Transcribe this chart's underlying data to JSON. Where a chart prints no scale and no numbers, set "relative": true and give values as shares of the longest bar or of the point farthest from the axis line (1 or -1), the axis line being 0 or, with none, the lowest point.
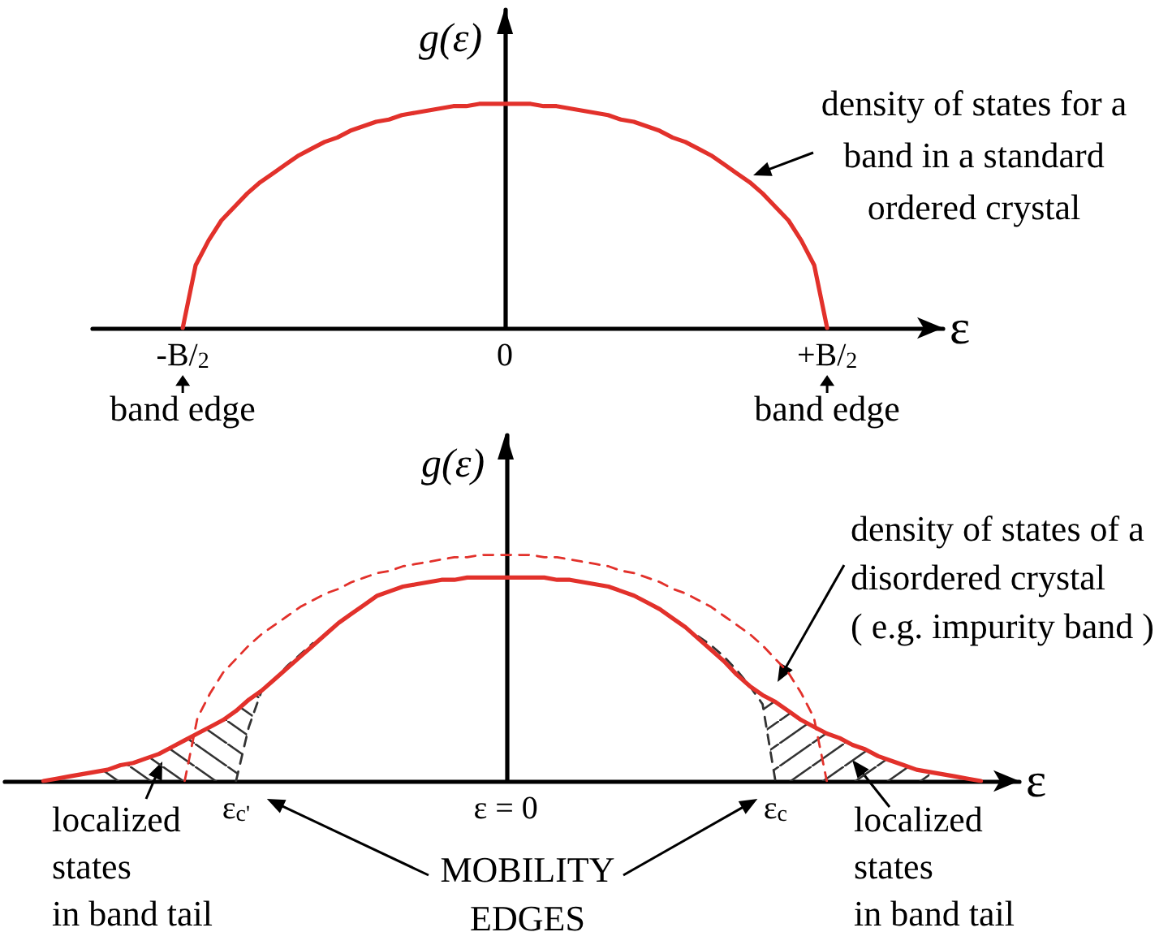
{
  "chart_data": [
    {
      "type": "line",
      "relative": true,
      "xlabel": "ε",
      "ylabel": "g(ε)",
      "categories": [
        null,
        null,
        null,
        null,
        null,
        null,
        null,
        "-B/$_{2}$",
        null,
        null,
        null,
        null,
        null,
        null,
        null,
        null,
        null,
        null,
        null,
        null,
        null,
        null,
        null,
        null,
        null,
        null,
        null,
        null,
        null,
        null,
        null,
        null,
        "0",
        null,
        null,
        null,
        null,
        null,
        null,
        null,
        null,
        null,
        null,
        null,
        null,
        null,
        null,
        null,
        null,
        null,
        null,
        null,
        null,
        null,
        null,
        null,
        null,
        "+B/$_{2}$",
        null,
        null,
        null,
        null,
        null,
        null,
        null,
        null,
        null
      ],
      "marker": "none",
      "series": [
        {
          "color": "#e2312b",
          "values": [
            null,
            null,
            null,
            null,
            null,
            null,
            null,
            0,
            0.28,
            0.39,
            0.48,
            0.54,
            0.6,
            0.65,
            0.69,
            0.73,
            0.77,
            0.8,
            0.83,
            0.85,
            0.88,
            0.9,
            0.92,
            0.93,
            0.95,
            0.96,
            0.97,
            0.98,
            0.99,
            0.99,
            1,
            1,
            1,
            1,
            1,
            0.99,
            0.99,
            0.98,
            0.97,
            0.96,
            0.95,
            0.93,
            0.92,
            0.9,
            0.88,
            0.85,
            0.83,
            0.8,
            0.77,
            0.73,
            0.69,
            0.65,
            0.6,
            0.54,
            0.48,
            0.39,
            0.28,
            0,
            null,
            null,
            null,
            null,
            null,
            null,
            null,
            null,
            null
          ]
        }
      ],
      "annotations": [
        "density of states for a\nband in a standard\nordered crystal",
        {
          "text": "band edge",
          "x": "-B/$_{2}$",
          "y": 0
        },
        {
          "text": "band edge",
          "x": "+B/$_{2}$",
          "y": 0
        }
      ]
    },
    {
      "type": "line",
      "relative": true,
      "xlabel": "ε",
      "ylabel": "g(ε)",
      "categories": [
        null,
        null,
        null,
        null,
        null,
        null,
        null,
        null,
        null,
        null,
        null,
        null,
        null,
        null,
        null,
        null,
        null,
        null,
        "ε$_{c'}$",
        null,
        null,
        null,
        null,
        null,
        null,
        null,
        null,
        null,
        null,
        null,
        null,
        null,
        null,
        null,
        null,
        null,
        null,
        null,
        null,
        "ε = 0",
        null,
        null,
        null,
        null,
        null,
        null,
        null,
        null,
        null,
        null,
        null,
        null,
        null,
        null,
        null,
        null,
        null,
        null,
        null,
        null,
        "ε$_{c}$",
        null,
        null,
        null,
        null,
        null,
        null,
        null,
        null,
        null,
        null,
        null,
        null,
        null,
        null,
        null,
        null,
        null,
        null,
        null
      ],
      "marker": "none",
      "series": [
        {
          "color": "#e2312b",
          "values": [
            null,
            null,
            null,
            0,
            0.01,
            0.02,
            0.03,
            0.04,
            0.05,
            0.07,
            0.08,
            0.1,
            0.12,
            0.15,
            0.18,
            0.21,
            0.24,
            0.27,
            0.31,
            0.36,
            0.4,
            0.45,
            0.5,
            0.55,
            0.6,
            0.65,
            0.7,
            0.74,
            0.78,
            0.82,
            0.84,
            0.86,
            0.87,
            0.88,
            0.89,
            0.89,
            0.9,
            0.9,
            0.9,
            0.9,
            0.9,
            0.9,
            0.9,
            0.89,
            0.89,
            0.88,
            0.87,
            0.86,
            0.84,
            0.82,
            0.79,
            0.76,
            0.72,
            0.68,
            0.63,
            0.58,
            0.53,
            0.47,
            0.42,
            0.38,
            0.35,
            0.31,
            0.27,
            0.24,
            0.21,
            0.19,
            0.16,
            0.14,
            0.11,
            0.09,
            0.07,
            0.05,
            0.04,
            0.03,
            0.02,
            0.01,
            0,
            null,
            null,
            null
          ]
        },
        {
          "color": "#e2312b",
          "line_style": "dashed",
          "values": [
            null,
            null,
            null,
            null,
            null,
            null,
            null,
            null,
            null,
            null,
            null,
            null,
            null,
            null,
            0,
            0.28,
            0.39,
            0.48,
            0.54,
            0.6,
            0.65,
            0.69,
            0.73,
            0.77,
            0.8,
            0.83,
            0.85,
            0.88,
            0.9,
            0.92,
            0.93,
            0.95,
            0.96,
            0.97,
            0.98,
            0.99,
            0.99,
            1,
            1,
            1,
            1,
            1,
            0.99,
            0.99,
            0.98,
            0.97,
            0.96,
            0.95,
            0.93,
            0.92,
            0.9,
            0.88,
            0.85,
            0.83,
            0.8,
            0.77,
            0.73,
            0.69,
            0.65,
            0.6,
            0.54,
            0.48,
            0.39,
            0.28,
            0,
            null,
            null,
            null,
            null,
            null,
            null,
            null,
            null,
            null,
            null,
            null,
            null,
            null,
            null,
            null
          ]
        },
        {
          "color": "#333333",
          "line_style": "dashed",
          "values": [
            null,
            null,
            null,
            null,
            null,
            null,
            null,
            null,
            null,
            null,
            null,
            null,
            null,
            null,
            null,
            null,
            null,
            null,
            0,
            0.24,
            0.4,
            0.45,
            0.51,
            0.56,
            0.61,
            null,
            null,
            null,
            null,
            null,
            null,
            null,
            null,
            null,
            null,
            null,
            null,
            null,
            null,
            null,
            null,
            null,
            null,
            null,
            null,
            null,
            null,
            null,
            null,
            null,
            null,
            null,
            null,
            null,
            null,
            null,
            null,
            null,
            null,
            null,
            null,
            null,
            null,
            null,
            null,
            null,
            null,
            null,
            null,
            null,
            null,
            null,
            null,
            null,
            null,
            null,
            null,
            null,
            null,
            null
          ],
          "lower": [
            null,
            null,
            null,
            null,
            null,
            null,
            null,
            0,
            0,
            0,
            0,
            0,
            0,
            0,
            0,
            0,
            0,
            0,
            0,
            0.24,
            0.4,
            null,
            null,
            null,
            null,
            null,
            null,
            null,
            null,
            null,
            null,
            null,
            null,
            null,
            null,
            null,
            null,
            null,
            null,
            null,
            null,
            null,
            null,
            null,
            null,
            null,
            null,
            null,
            null,
            null,
            null,
            null,
            null,
            null,
            null,
            null,
            null,
            null,
            null,
            null,
            null,
            null,
            null,
            null,
            null,
            null,
            null,
            null,
            null,
            null,
            null,
            null,
            null,
            null,
            null,
            null,
            null,
            null,
            null,
            null
          ],
          "upper": [
            null,
            null,
            null,
            null,
            null,
            null,
            null,
            0.04,
            0.05,
            0.07,
            0.08,
            0.1,
            0.12,
            0.15,
            0.18,
            0.21,
            0.24,
            0.27,
            0.31,
            0.36,
            0.4,
            null,
            null,
            null,
            null,
            null,
            null,
            null,
            null,
            null,
            null,
            null,
            null,
            null,
            null,
            null,
            null,
            null,
            null,
            null,
            null,
            null,
            null,
            null,
            null,
            null,
            null,
            null,
            null,
            null,
            null,
            null,
            null,
            null,
            null,
            null,
            null,
            null,
            null,
            null,
            null,
            null,
            null,
            null,
            null,
            null,
            null,
            null,
            null,
            null,
            null,
            null,
            null,
            null,
            null,
            null,
            null,
            null,
            null,
            null
          ]
        },
        {
          "color": "#333333",
          "line_style": "dashed",
          "values": [
            null,
            null,
            null,
            null,
            null,
            null,
            null,
            null,
            null,
            null,
            null,
            null,
            null,
            null,
            null,
            null,
            null,
            null,
            null,
            null,
            null,
            null,
            null,
            null,
            null,
            null,
            null,
            null,
            null,
            null,
            null,
            null,
            null,
            null,
            null,
            null,
            null,
            null,
            null,
            null,
            null,
            null,
            null,
            null,
            null,
            null,
            null,
            null,
            null,
            null,
            null,
            null,
            null,
            null,
            0.64,
            0.6,
            0.55,
            0.49,
            0.42,
            0.34,
            0,
            null,
            null,
            null,
            null,
            null,
            null,
            null,
            null,
            null,
            null,
            null,
            null,
            null,
            null,
            null,
            null,
            null,
            null,
            null
          ],
          "lower": [
            null,
            null,
            null,
            null,
            null,
            null,
            null,
            null,
            null,
            null,
            null,
            null,
            null,
            null,
            null,
            null,
            null,
            null,
            null,
            null,
            null,
            null,
            null,
            null,
            null,
            null,
            null,
            null,
            null,
            null,
            null,
            null,
            null,
            null,
            null,
            null,
            null,
            null,
            null,
            null,
            null,
            null,
            null,
            null,
            null,
            null,
            null,
            null,
            null,
            null,
            null,
            null,
            null,
            null,
            null,
            null,
            null,
            null,
            0.42,
            0.34,
            0,
            0,
            0,
            0,
            0,
            0,
            0,
            0,
            0,
            0,
            0,
            0,
            0,
            null,
            null,
            null,
            null,
            null,
            null,
            null
          ],
          "upper": [
            null,
            null,
            null,
            null,
            null,
            null,
            null,
            null,
            null,
            null,
            null,
            null,
            null,
            null,
            null,
            null,
            null,
            null,
            null,
            null,
            null,
            null,
            null,
            null,
            null,
            null,
            null,
            null,
            null,
            null,
            null,
            null,
            null,
            null,
            null,
            null,
            null,
            null,
            null,
            null,
            null,
            null,
            null,
            null,
            null,
            null,
            null,
            null,
            null,
            null,
            null,
            null,
            null,
            null,
            null,
            null,
            null,
            null,
            0.42,
            0.38,
            0.35,
            0.31,
            0.27,
            0.24,
            0.21,
            0.19,
            0.16,
            0.14,
            0.11,
            0.09,
            0.07,
            0.05,
            0.04,
            null,
            null,
            null,
            null,
            null,
            null,
            null
          ]
        }
      ],
      "annotations": [
        "density of states of a\ndisordered crystal\n( e.g. impurity band )",
        "localized\nstates\nin band tail",
        "MOBILITY\nEDGES",
        "localized\nstates\nin band tail"
      ]
    }
  ]
}
